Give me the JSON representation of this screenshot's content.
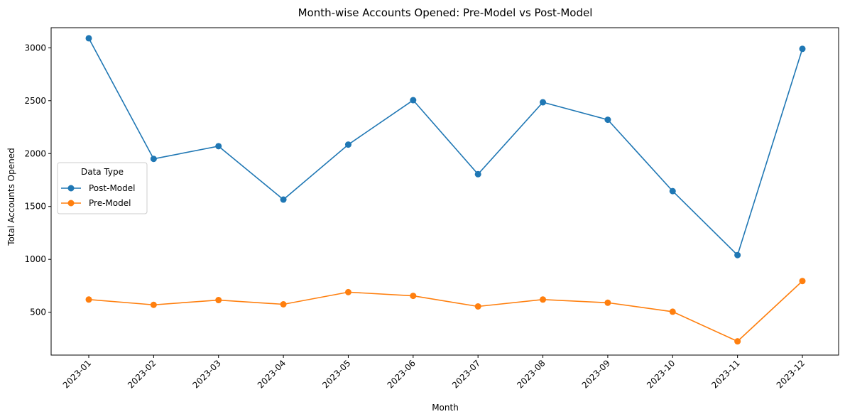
{
  "chart_data": {
    "type": "line",
    "title": "Month-wise Accounts Opened: Pre-Model vs Post-Model",
    "xlabel": "Month",
    "ylabel": "Total Accounts Opened",
    "categories": [
      "2023-01",
      "2023-02",
      "2023-03",
      "2023-04",
      "2023-05",
      "2023-06",
      "2023-07",
      "2023-08",
      "2023-09",
      "2023-10",
      "2023-11",
      "2023-12"
    ],
    "yticks": [
      500,
      1000,
      1500,
      2000,
      2500,
      3000
    ],
    "ylim": [
      95,
      3190
    ],
    "grid": false,
    "legend": {
      "title": "Data Type",
      "placement": "center-left"
    },
    "series": [
      {
        "name": "Post-Model",
        "color": "#1f77b4",
        "values": [
          3090,
          1950,
          2070,
          1565,
          2085,
          2505,
          1805,
          2485,
          2320,
          1645,
          1040,
          2990
        ]
      },
      {
        "name": "Pre-Model",
        "color": "#ff7f0e",
        "values": [
          620,
          570,
          615,
          575,
          690,
          655,
          555,
          620,
          590,
          505,
          225,
          795
        ]
      }
    ]
  }
}
